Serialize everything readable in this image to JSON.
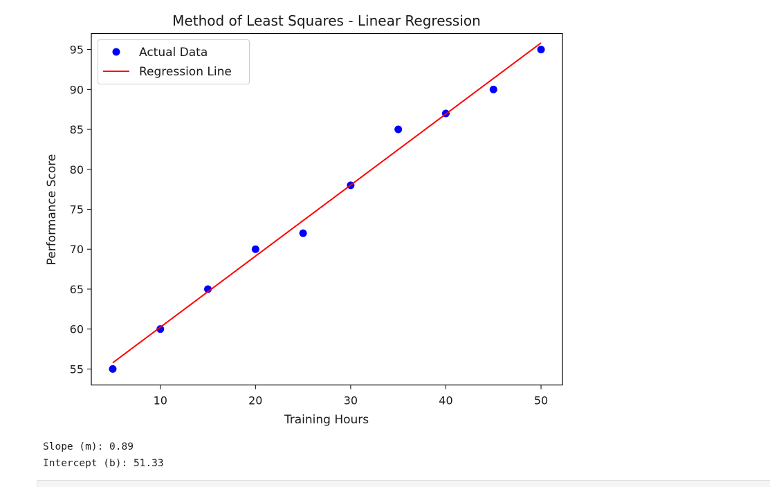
{
  "chart_data": {
    "type": "scatter",
    "title": "Method of Least Squares - Linear Regression",
    "xlabel": "Training Hours",
    "ylabel": "Performance Score",
    "xlim": [
      2.75,
      52.25
    ],
    "ylim": [
      53.0,
      97.0
    ],
    "xticks": [
      10,
      20,
      30,
      40,
      50
    ],
    "yticks": [
      55,
      60,
      65,
      70,
      75,
      80,
      85,
      90,
      95
    ],
    "grid": false,
    "legend_position": "upper-left",
    "series": [
      {
        "name": "Actual Data",
        "type": "scatter",
        "color": "#0000ff",
        "x": [
          5,
          10,
          15,
          20,
          25,
          30,
          35,
          40,
          45,
          50
        ],
        "y": [
          55,
          60,
          65,
          70,
          72,
          78,
          85,
          87,
          90,
          95
        ]
      },
      {
        "name": "Regression Line",
        "type": "line",
        "color": "#ff0000",
        "x": [
          5,
          50
        ],
        "y": [
          55.78,
          95.83
        ]
      }
    ]
  },
  "output": {
    "slope_line": "Slope (m): 0.89",
    "intercept_line": "Intercept (b): 51.33"
  }
}
